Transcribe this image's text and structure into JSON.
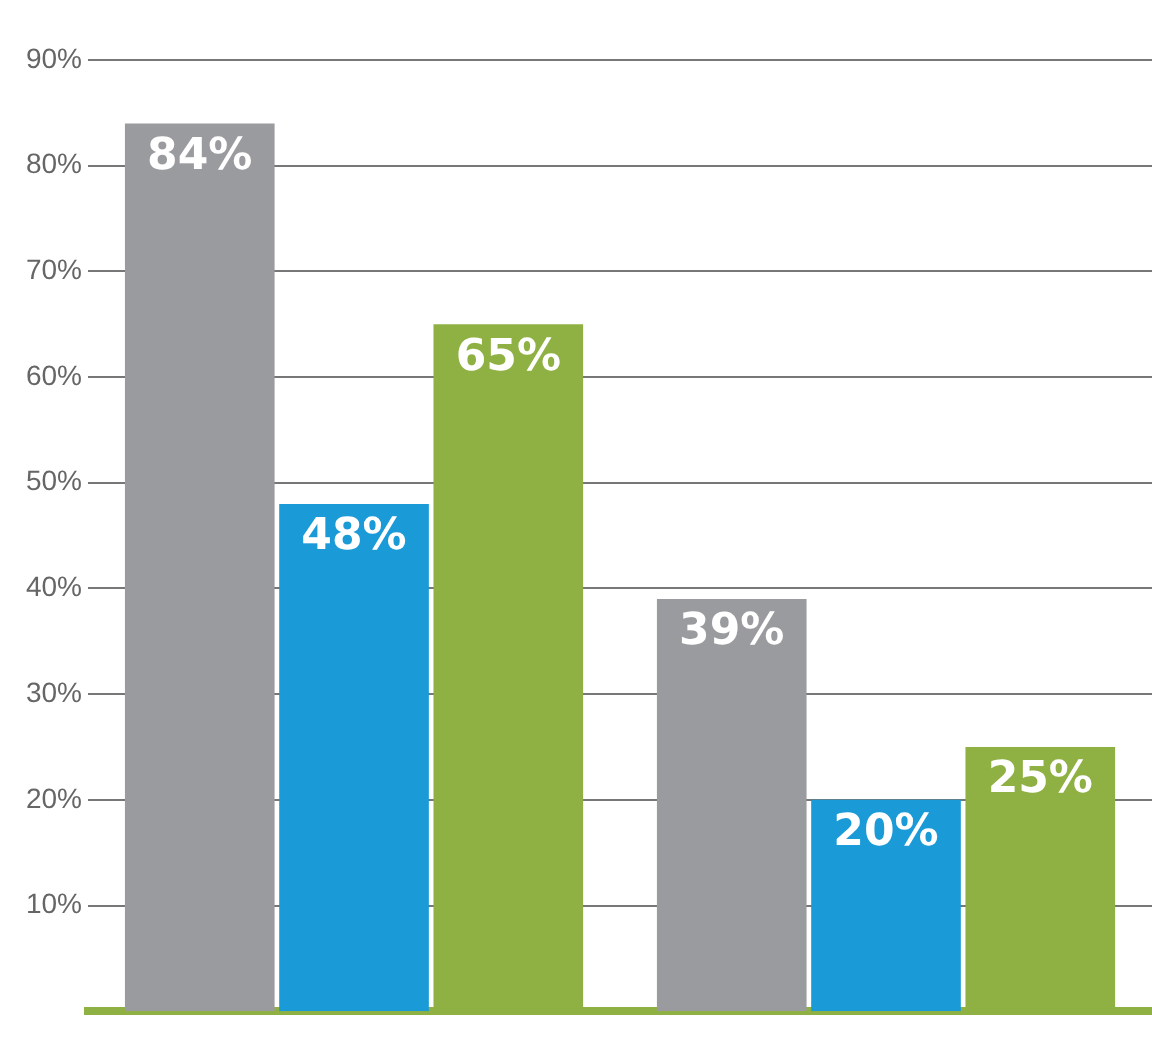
{
  "chart_data": {
    "type": "bar",
    "categories": [
      null,
      null
    ],
    "series": [
      {
        "color": "#9a9b9e",
        "values": [
          84,
          39
        ],
        "value_labels": [
          "84%",
          "39%"
        ]
      },
      {
        "color": "#1a9ad6",
        "values": [
          48,
          20
        ],
        "value_labels": [
          "48%",
          "20%"
        ]
      },
      {
        "color": "#8fb043",
        "values": [
          65,
          25
        ],
        "value_labels": [
          "65%",
          "25%"
        ]
      }
    ],
    "ylim": [
      0,
      90
    ],
    "yticks": [
      {
        "value": 10,
        "label": "10%"
      },
      {
        "value": 20,
        "label": "20%"
      },
      {
        "value": 30,
        "label": "30%"
      },
      {
        "value": 40,
        "label": "40%"
      },
      {
        "value": 50,
        "label": "50%"
      },
      {
        "value": 60,
        "label": "60%"
      },
      {
        "value": 70,
        "label": "70%"
      },
      {
        "value": 80,
        "label": "80%"
      },
      {
        "value": 90,
        "label": "90%"
      }
    ],
    "grid": "y",
    "legend": false
  }
}
